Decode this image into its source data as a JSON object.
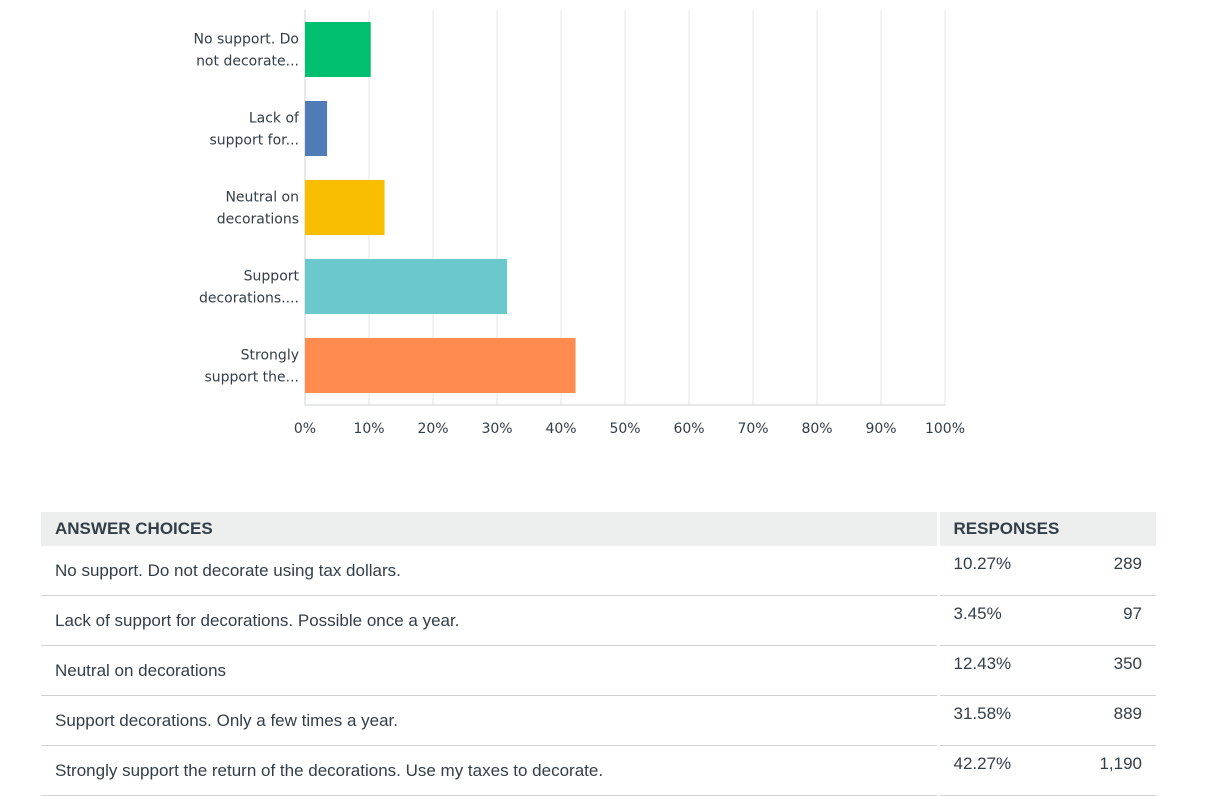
{
  "chart_data": {
    "type": "bar",
    "orientation": "horizontal",
    "categories": [
      [
        "No support. Do",
        "not decorate..."
      ],
      [
        "Lack of",
        "support for..."
      ],
      [
        "Neutral on",
        "decorations"
      ],
      [
        "Support",
        "decorations...."
      ],
      [
        "Strongly",
        "support the..."
      ]
    ],
    "values": [
      10.27,
      3.45,
      12.43,
      31.58,
      42.27
    ],
    "colors": [
      "#00bf6f",
      "#507cb6",
      "#f9be00",
      "#6bc8cd",
      "#ff8b4f"
    ],
    "xlim": [
      0,
      100
    ],
    "xticks": [
      "0%",
      "10%",
      "20%",
      "30%",
      "40%",
      "50%",
      "60%",
      "70%",
      "80%",
      "90%",
      "100%"
    ],
    "grid": true,
    "grid_color": "#e6e6e6"
  },
  "table": {
    "col_answer": "ANSWER CHOICES",
    "col_responses": "RESPONSES",
    "rows": [
      {
        "answer": "No support. Do not decorate using tax dollars.",
        "percent": "10.27%",
        "count": "289"
      },
      {
        "answer": "Lack of support for decorations. Possible once a year.",
        "percent": "3.45%",
        "count": "97"
      },
      {
        "answer": "Neutral on decorations",
        "percent": "12.43%",
        "count": "350"
      },
      {
        "answer": "Support decorations. Only a few times a year.",
        "percent": "31.58%",
        "count": "889"
      },
      {
        "answer": "Strongly support the return of the decorations. Use my taxes to decorate.",
        "percent": "42.27%",
        "count": "1,190"
      }
    ]
  }
}
